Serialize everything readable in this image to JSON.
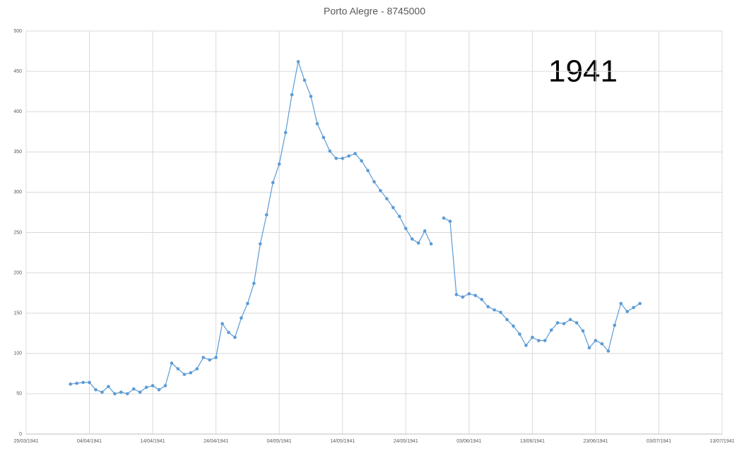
{
  "chart_data": {
    "type": "line",
    "title": "Porto Alegre - 8745000",
    "annotation": "1941",
    "x": [
      "01/04/1941",
      "02/04/1941",
      "03/04/1941",
      "04/04/1941",
      "05/04/1941",
      "06/04/1941",
      "07/04/1941",
      "08/04/1941",
      "09/04/1941",
      "10/04/1941",
      "11/04/1941",
      "12/04/1941",
      "13/04/1941",
      "14/04/1941",
      "15/04/1941",
      "16/04/1941",
      "17/04/1941",
      "18/04/1941",
      "19/04/1941",
      "20/04/1941",
      "21/04/1941",
      "22/04/1941",
      "23/04/1941",
      "24/04/1941",
      "25/04/1941",
      "26/04/1941",
      "27/04/1941",
      "28/04/1941",
      "29/04/1941",
      "30/04/1941",
      "01/05/1941",
      "02/05/1941",
      "03/05/1941",
      "04/05/1941",
      "05/05/1941",
      "06/05/1941",
      "07/05/1941",
      "08/05/1941",
      "09/05/1941",
      "10/05/1941",
      "11/05/1941",
      "12/05/1941",
      "13/05/1941",
      "14/05/1941",
      "15/05/1941",
      "16/05/1941",
      "17/05/1941",
      "18/05/1941",
      "19/05/1941",
      "20/05/1941",
      "21/05/1941",
      "22/05/1941",
      "23/05/1941",
      "24/05/1941",
      "25/05/1941",
      "26/05/1941",
      "27/05/1941",
      "28/05/1941",
      "29/05/1941",
      "30/05/1941",
      "31/05/1941",
      "01/06/1941",
      "02/06/1941",
      "03/06/1941",
      "04/06/1941",
      "05/06/1941",
      "06/06/1941",
      "07/06/1941",
      "08/06/1941",
      "09/06/1941",
      "10/06/1941",
      "11/06/1941",
      "12/06/1941",
      "13/06/1941",
      "14/06/1941",
      "15/06/1941",
      "16/06/1941",
      "17/06/1941",
      "18/06/1941",
      "19/06/1941",
      "20/06/1941",
      "21/06/1941",
      "22/06/1941",
      "23/06/1941",
      "24/06/1941",
      "25/06/1941",
      "26/06/1941",
      "27/06/1941",
      "28/06/1941",
      "29/06/1941",
      "30/06/1941"
    ],
    "series": [
      {
        "name": "Porto Alegre",
        "color": "#5b9bd5",
        "values": [
          62,
          63,
          64,
          64,
          55,
          52,
          59,
          50,
          52,
          50,
          56,
          52,
          58,
          60,
          55,
          60,
          88,
          81,
          74,
          76,
          81,
          95,
          92,
          95,
          137,
          126,
          120,
          144,
          162,
          187,
          236,
          272,
          312,
          335,
          374,
          421,
          462,
          439,
          419,
          385,
          368,
          351,
          342,
          342,
          345,
          348,
          339,
          327,
          313,
          302,
          292,
          281,
          270,
          255,
          242,
          237,
          252,
          236,
          null,
          268,
          264,
          173,
          170,
          174,
          172,
          167,
          158,
          154,
          151,
          142,
          134,
          124,
          110,
          120,
          116,
          116,
          129,
          138,
          137,
          142,
          138,
          128,
          107,
          116,
          112,
          103,
          135,
          162,
          152,
          157,
          162
        ]
      }
    ],
    "xlim": [
      "25/03/1941",
      "13/07/1941"
    ],
    "xticks": [
      "25/03/1941",
      "04/04/1941",
      "14/04/1941",
      "24/04/1941",
      "04/05/1941",
      "14/05/1941",
      "24/05/1941",
      "03/06/1941",
      "13/06/1941",
      "23/06/1941",
      "03/07/1941",
      "13/07/1941"
    ],
    "ylim": [
      0,
      500
    ],
    "yticks": [
      0,
      50,
      100,
      150,
      200,
      250,
      300,
      350,
      400,
      450,
      500
    ],
    "grid": true
  }
}
